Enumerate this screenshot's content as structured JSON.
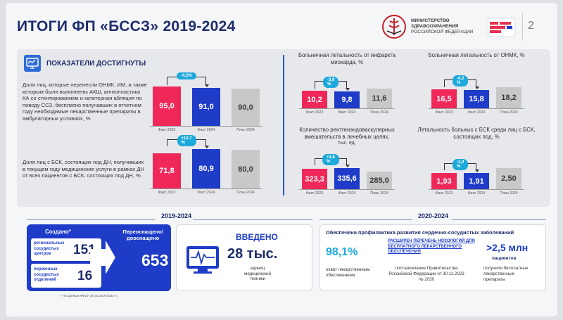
{
  "header": {
    "title": "ИТОГИ ФП «БССЗ» 2019-2024",
    "ministry_line1": "МИНИСТЕРСТВО",
    "ministry_line2": "ЗДРАВООХРАНЕНИЯ",
    "ministry_line3": "РОССИЙСКОЙ ФЕДЕРАЦИИ",
    "page_number": "2"
  },
  "indicators": {
    "title": "ПОКАЗАТЕЛИ ДОСТИГНУТЫ",
    "text1": "Доля лиц, которые перенесли ОНМК, ИМ, а также которым были выполнены АКШ, ангиопластика КА со стентированием и катетерная абляция по поводу ССЗ, бесплатно получавших в отчетном году необходимые лекарственные препараты в амбулаторных условиях, %",
    "text2": "Доля лиц с БСК, состоящих под ДН, получивших в текущем году медицинские услуги в рамках ДН от всех пациентов с БСК, состоящих под ДН, %"
  },
  "bar_labels": {
    "fact2023": "Факт 2023",
    "fact2024": "Факт 2024",
    "plan2024": "План 2024"
  },
  "chart_data": [
    {
      "type": "bar",
      "title": "",
      "categories": [
        "Факт 2023",
        "Факт 2024",
        "План 2024"
      ],
      "values": [
        95.0,
        91.0,
        90.0
      ],
      "labels": [
        "95,0",
        "91,0",
        "90,0"
      ],
      "change": "-4,2%"
    },
    {
      "type": "bar",
      "title": "",
      "categories": [
        "Факт 2023",
        "Факт 2024",
        "План 2024"
      ],
      "values": [
        71.8,
        80.9,
        80.0
      ],
      "labels": [
        "71,8",
        "80,9",
        "80,0"
      ],
      "change": "+12,7 %"
    },
    {
      "type": "bar",
      "title": "Больничная летальность от инфаркта миокарда, %",
      "categories": [
        "Факт 2023",
        "Факт 2024",
        "План 2024"
      ],
      "values": [
        10.2,
        9.8,
        11.6
      ],
      "labels": [
        "10,2",
        "9,8",
        "11,6"
      ],
      "change": "-3,9 %"
    },
    {
      "type": "bar",
      "title": "Больничная летальность от ОНМК, %",
      "categories": [
        "Факт 2023",
        "Факт 2024",
        "План 2024"
      ],
      "values": [
        16.5,
        15.8,
        18.2
      ],
      "labels": [
        "16,5",
        "15,8",
        "18,2"
      ],
      "change": "-4,2 %"
    },
    {
      "type": "bar",
      "title": "Количество рентгенэндоваскулярных вмешательств в лечебных целях,",
      "unit": "тыс. ед.",
      "categories": [
        "Факт 2023",
        "Факт 2024",
        "План 2024"
      ],
      "values": [
        323.3,
        335.6,
        285.0
      ],
      "labels": [
        "323,3",
        "335,6",
        "285,0"
      ],
      "change": "+3,8 %"
    },
    {
      "type": "bar",
      "title": "Летальность больных с БСК среди лиц с БСК, состоящих под, %",
      "categories": [
        "Факт 2023",
        "Факт 2024",
        "План 2024"
      ],
      "values": [
        1.93,
        1.91,
        2.5
      ],
      "labels": [
        "1,93",
        "1,91",
        "2,50"
      ],
      "change": "-1,0 %"
    }
  ],
  "period1": {
    "title": "2019-2024",
    "created_label": "Создано*",
    "reequipped_label": "Переоснащено/ дооснащено",
    "regional_label": "региональных сосудистых центров",
    "regional_value": "151",
    "primary_label": "первичных сосудистых отделений",
    "primary_value": "16",
    "total_value": "653",
    "footnote": "* По данным ФФСН 30 за 2019-2024 гг.",
    "introduced_label": "ВВЕДЕНО",
    "introduced_value": "28 тыс.",
    "introduced_caption": "единиц медицинской техники"
  },
  "period2": {
    "title": "2020-2024",
    "heading": "Обеспечена профилактика развития сердечно-сосудистых заболеваний",
    "coverage_value": "98,1%",
    "coverage_caption": "охват лекарственным обеспечением",
    "expanded_label": "РАСШИРЕН ПЕРЕЧЕНЬ НОЗОЛОГИЙ ДЛЯ БЕСПЛАТНОГО ЛЕКАРСТВЕННОГО ОБЕСПЕЧЕНИЯ",
    "decree_text": "постановление Правительства Российской Федерации от 30.11.2023 № 2030",
    "patients_value": ">2,5 млн",
    "patients_label": "пациентов",
    "patients_caption": "получили бесплатные лекарственные препараты"
  },
  "colors": {
    "fact2023": "#f0285a",
    "fact2024": "#1e3cc8",
    "plan2024": "#c8c8c8",
    "accent": "#1ea9dc",
    "navy": "#1e2d6b"
  }
}
